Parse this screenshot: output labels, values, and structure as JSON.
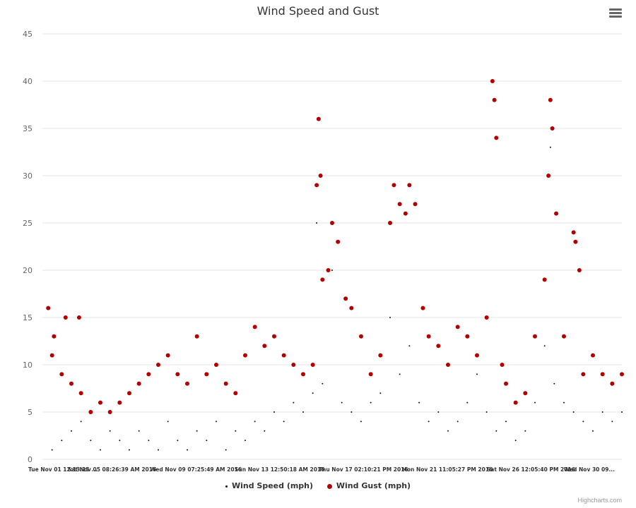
{
  "chart_data": {
    "type": "scatter",
    "title": "Wind Speed and Gust",
    "ylim": [
      0,
      45
    ],
    "yticks": [
      0,
      5,
      10,
      15,
      20,
      25,
      30,
      35,
      40,
      45
    ],
    "xticks": [
      "Tue Nov 01 12:13:25 ...",
      "Sat Nov 05 08:26:39 AM 2016",
      "Wed Nov 09 07:25:49 AM 2016",
      "Sun Nov 13 12:50:18 AM 2016",
      "Thu Nov 17 02:10:21 PM 2016",
      "Mon Nov 21 11:05:27 PM 2016",
      "Sat Nov 26 12:05:40 PM 2016",
      "Wed Nov 30 09..."
    ],
    "x_index_range": [
      0,
      30
    ],
    "grid": true,
    "legend_position": "bottom",
    "series": [
      {
        "name": "Wind Speed (mph)",
        "color": "#111111",
        "marker": "small-dot",
        "points": [
          [
            0.5,
            1
          ],
          [
            1.0,
            2
          ],
          [
            1.5,
            3
          ],
          [
            2.0,
            4
          ],
          [
            2.5,
            2
          ],
          [
            3.0,
            1
          ],
          [
            3.5,
            3
          ],
          [
            4.0,
            2
          ],
          [
            4.5,
            1
          ],
          [
            5.0,
            3
          ],
          [
            5.5,
            2
          ],
          [
            6.0,
            1
          ],
          [
            6.5,
            4
          ],
          [
            7.0,
            2
          ],
          [
            7.5,
            1
          ],
          [
            8.0,
            3
          ],
          [
            8.5,
            2
          ],
          [
            9.0,
            4
          ],
          [
            9.5,
            1
          ],
          [
            10.0,
            3
          ],
          [
            10.5,
            2
          ],
          [
            11.0,
            4
          ],
          [
            11.5,
            3
          ],
          [
            12.0,
            5
          ],
          [
            12.5,
            4
          ],
          [
            13.0,
            6
          ],
          [
            13.5,
            5
          ],
          [
            14.0,
            7
          ],
          [
            14.2,
            25
          ],
          [
            14.5,
            8
          ],
          [
            15.0,
            20
          ],
          [
            15.5,
            6
          ],
          [
            16.0,
            5
          ],
          [
            16.5,
            4
          ],
          [
            17.0,
            6
          ],
          [
            17.5,
            7
          ],
          [
            18.0,
            15
          ],
          [
            18.5,
            9
          ],
          [
            19.0,
            12
          ],
          [
            19.5,
            6
          ],
          [
            20.0,
            4
          ],
          [
            20.5,
            5
          ],
          [
            21.0,
            3
          ],
          [
            21.5,
            4
          ],
          [
            22.0,
            6
          ],
          [
            22.5,
            9
          ],
          [
            23.0,
            5
          ],
          [
            23.5,
            3
          ],
          [
            24.0,
            4
          ],
          [
            24.5,
            2
          ],
          [
            25.0,
            3
          ],
          [
            25.5,
            6
          ],
          [
            26.0,
            12
          ],
          [
            26.3,
            33
          ],
          [
            26.5,
            8
          ],
          [
            27.0,
            6
          ],
          [
            27.5,
            5
          ],
          [
            28.0,
            4
          ],
          [
            28.5,
            3
          ],
          [
            29.0,
            5
          ],
          [
            29.5,
            4
          ],
          [
            30.0,
            5
          ]
        ]
      },
      {
        "name": "Wind Gust (mph)",
        "color": "#b30000",
        "marker": "circle",
        "points": [
          [
            0.3,
            16
          ],
          [
            0.6,
            13
          ],
          [
            1.2,
            15
          ],
          [
            1.9,
            15
          ],
          [
            0.5,
            11
          ],
          [
            1.0,
            9
          ],
          [
            1.5,
            8
          ],
          [
            2.0,
            7
          ],
          [
            2.5,
            5
          ],
          [
            3.0,
            6
          ],
          [
            3.5,
            5
          ],
          [
            4.0,
            6
          ],
          [
            4.5,
            7
          ],
          [
            5.0,
            8
          ],
          [
            5.5,
            9
          ],
          [
            6.0,
            10
          ],
          [
            6.5,
            11
          ],
          [
            7.0,
            9
          ],
          [
            7.5,
            8
          ],
          [
            8.0,
            13
          ],
          [
            8.5,
            9
          ],
          [
            9.0,
            10
          ],
          [
            9.5,
            8
          ],
          [
            10.0,
            7
          ],
          [
            10.5,
            11
          ],
          [
            11.0,
            14
          ],
          [
            11.5,
            12
          ],
          [
            12.0,
            13
          ],
          [
            12.5,
            11
          ],
          [
            13.0,
            10
          ],
          [
            13.5,
            9
          ],
          [
            14.0,
            10
          ],
          [
            14.2,
            29
          ],
          [
            14.3,
            36
          ],
          [
            14.4,
            30
          ],
          [
            14.5,
            19
          ],
          [
            14.8,
            20
          ],
          [
            15.0,
            25
          ],
          [
            15.3,
            23
          ],
          [
            15.7,
            17
          ],
          [
            16.0,
            16
          ],
          [
            16.5,
            13
          ],
          [
            17.0,
            9
          ],
          [
            17.5,
            11
          ],
          [
            18.0,
            25
          ],
          [
            18.2,
            29
          ],
          [
            18.5,
            27
          ],
          [
            18.8,
            26
          ],
          [
            19.0,
            29
          ],
          [
            19.3,
            27
          ],
          [
            19.7,
            16
          ],
          [
            20.0,
            13
          ],
          [
            20.5,
            12
          ],
          [
            21.0,
            10
          ],
          [
            21.5,
            14
          ],
          [
            22.0,
            13
          ],
          [
            22.5,
            11
          ],
          [
            23.0,
            15
          ],
          [
            23.3,
            40
          ],
          [
            23.4,
            38
          ],
          [
            23.5,
            34
          ],
          [
            23.8,
            10
          ],
          [
            24.0,
            8
          ],
          [
            24.5,
            6
          ],
          [
            25.0,
            7
          ],
          [
            25.5,
            13
          ],
          [
            26.0,
            19
          ],
          [
            26.2,
            30
          ],
          [
            26.3,
            38
          ],
          [
            26.4,
            35
          ],
          [
            26.6,
            26
          ],
          [
            27.0,
            13
          ],
          [
            27.5,
            24
          ],
          [
            27.6,
            23
          ],
          [
            27.8,
            20
          ],
          [
            28.0,
            9
          ],
          [
            28.5,
            11
          ],
          [
            29.0,
            9
          ],
          [
            29.5,
            8
          ],
          [
            30.0,
            9
          ]
        ]
      }
    ]
  },
  "ui": {
    "menu_icon": "hamburger-menu-icon",
    "credits": "Highcharts.com"
  }
}
